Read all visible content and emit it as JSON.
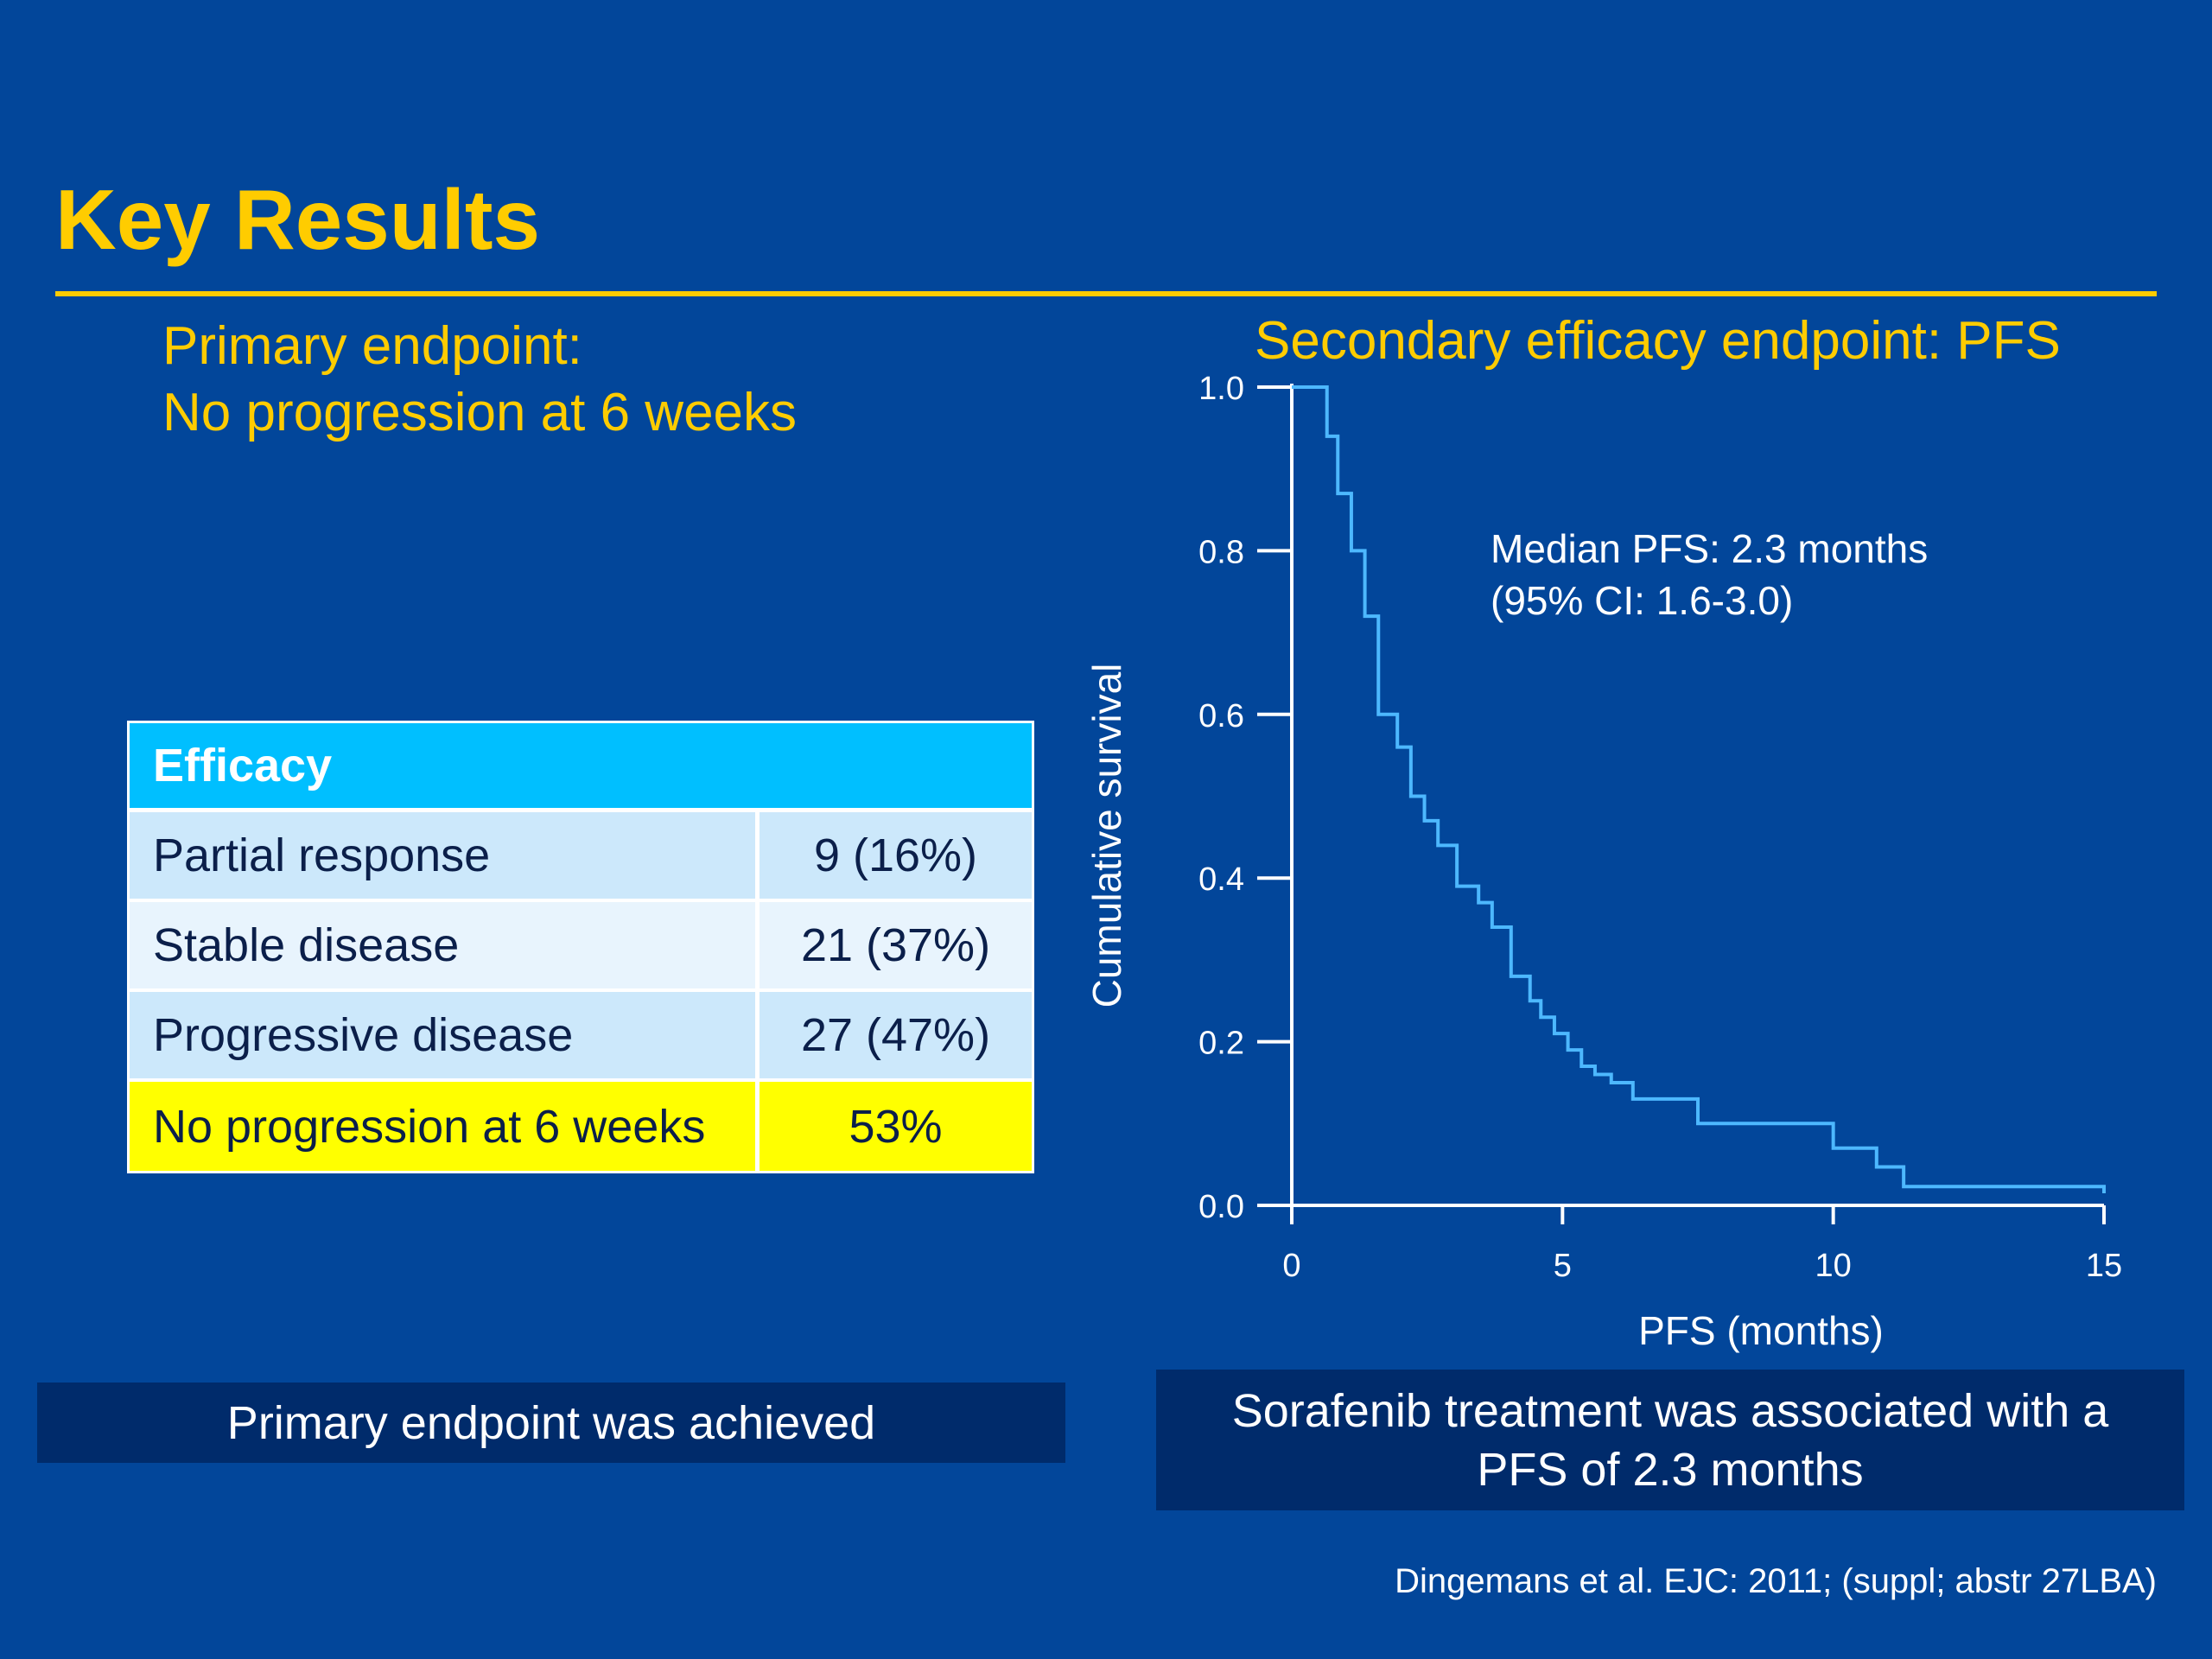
{
  "slide": {
    "title": "Key Results",
    "primary_heading_line1": "Primary endpoint:",
    "primary_heading_line2": "No progression at 6 weeks",
    "secondary_heading": "Secondary efficacy endpoint:  PFS",
    "callout_left": "Primary endpoint was achieved",
    "callout_right_line1": "Sorafenib treatment was associated with a",
    "callout_right_line2": "PFS of 2.3 months",
    "citation": "Dingemans et al. EJC: 2011; (suppl; abstr 27LBA)",
    "colors": {
      "background": "#02469A",
      "accent": "#FFCC00",
      "table_header": "#00BFFF",
      "row_light": "#CCE8FB",
      "row_lighter": "#E8F4FD",
      "highlight": "#FFFF00",
      "curve": "#4DB8FF",
      "callout": "#002B6B"
    }
  },
  "table": {
    "header": "Efficacy",
    "rows": [
      {
        "label": "Partial response",
        "value": "9 (16%)"
      },
      {
        "label": "Stable disease",
        "value": "21 (37%)"
      },
      {
        "label": "Progressive disease",
        "value": "27 (47%)"
      },
      {
        "label": "No progression at 6 weeks",
        "value": "53%"
      }
    ]
  },
  "chart_data": {
    "type": "line",
    "step": true,
    "xlabel": "PFS (months)",
    "ylabel": "Cumulative survival",
    "xlim": [
      0,
      15
    ],
    "ylim": [
      0,
      1
    ],
    "x_ticks": [
      "0",
      "5",
      "10",
      "15"
    ],
    "y_ticks": [
      "0.0",
      "0.2",
      "0.4",
      "0.6",
      "0.8",
      "1.0"
    ],
    "annotation_line1": "Median PFS: 2.3 months",
    "annotation_line2": "(95% CI: 1.6-3.0)",
    "series": [
      {
        "x": [
          0,
          0.65,
          0.85,
          1.1,
          1.35,
          1.6,
          1.95,
          2.2,
          2.45,
          2.7,
          3.05,
          3.45,
          3.7,
          4.05,
          4.4,
          4.6,
          4.85,
          5.1,
          5.35,
          5.6,
          5.9,
          6.3,
          7.5,
          10.0,
          10.8,
          11.3,
          15.0
        ],
        "y": [
          1.0,
          0.94,
          0.87,
          0.8,
          0.72,
          0.6,
          0.56,
          0.5,
          0.47,
          0.44,
          0.39,
          0.37,
          0.34,
          0.28,
          0.25,
          0.23,
          0.21,
          0.19,
          0.17,
          0.16,
          0.15,
          0.13,
          0.1,
          0.07,
          0.047,
          0.023,
          0.01
        ]
      }
    ]
  }
}
